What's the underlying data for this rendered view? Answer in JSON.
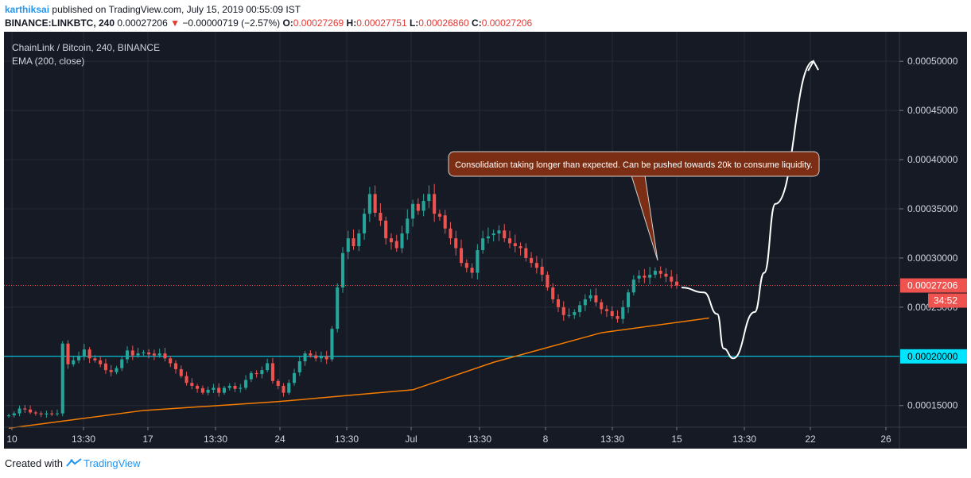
{
  "header": {
    "author": "karthiksai",
    "published_text": "published on TradingView.com, July 15, 2019 00:55:09 IST",
    "symbol": "BINANCE:LINKBTC, 240",
    "last": "0.00027206",
    "change": "−0.00000719 (−2.57%)",
    "o_label": "O:",
    "o_value": "0.00027269",
    "h_label": "H:",
    "h_value": "0.00027751",
    "l_label": "L:",
    "l_value": "0.00026860",
    "c_label": "C:",
    "c_value": "0.00027206"
  },
  "legend": {
    "pair": "ChainLink / Bitcoin, 240, BINANCE",
    "indicator": "EMA (200, close)"
  },
  "annotation": {
    "text": "Consolidation taking longer than expected. Can be pushed towards 20k to consume liquidity."
  },
  "footer": {
    "created_with": "Created with",
    "brand": "TradingView"
  },
  "colors": {
    "background": "#161a25",
    "up": "#26a69a",
    "down": "#ef5350",
    "ema": "#f57c00",
    "support": "#00e5ff",
    "price_line": "#ef5350",
    "callout": "#7b2e14",
    "projection": "#ffffff"
  },
  "chart_data": {
    "type": "candlestick",
    "title": "ChainLink / Bitcoin, 240, BINANCE",
    "y_axis": {
      "ticks": [
        "0.00015000",
        "0.00020000",
        "0.00025000",
        "0.00030000",
        "0.00035000",
        "0.00040000",
        "0.00045000",
        "0.00050000"
      ],
      "range": [
        0.000128,
        0.00053
      ]
    },
    "x_axis": {
      "ticks": [
        "10",
        "13:30",
        "17",
        "13:30",
        "24",
        "13:30",
        "Jul",
        "13:30",
        "8",
        "13:30",
        "15",
        "13:30",
        "22",
        "26"
      ]
    },
    "price_close_series_approx": [
      0.00014,
      0.000142,
      0.000147,
      0.000146,
      0.000143,
      0.000142,
      0.000141,
      0.000142,
      0.000141,
      0.000142,
      0.000213,
      0.000192,
      0.000196,
      0.0002,
      0.000207,
      0.000198,
      0.000196,
      0.000192,
      0.000186,
      0.000184,
      0.000188,
      0.000197,
      0.000206,
      0.000201,
      0.000203,
      0.000204,
      0.000202,
      0.000201,
      0.000203,
      0.000198,
      0.000193,
      0.000187,
      0.00018,
      0.000173,
      0.00017,
      0.000167,
      0.000163,
      0.000166,
      0.000168,
      0.000163,
      0.000168,
      0.00017,
      0.000167,
      0.000168,
      0.000176,
      0.000183,
      0.000182,
      0.000186,
      0.000193,
      0.000175,
      0.00017,
      0.000163,
      0.000173,
      0.000183,
      0.000195,
      0.000203,
      0.000201,
      0.000198,
      0.0002,
      0.000197,
      0.000228,
      0.00027,
      0.000305,
      0.00032,
      0.000312,
      0.000325,
      0.000345,
      0.000365,
      0.000346,
      0.000338,
      0.00032,
      0.000316,
      0.00031,
      0.000325,
      0.00034,
      0.000355,
      0.000348,
      0.000358,
      0.000365,
      0.000345,
      0.000342,
      0.00033,
      0.00032,
      0.00031,
      0.000295,
      0.00029,
      0.000285,
      0.000308,
      0.00032,
      0.000322,
      0.000325,
      0.000328,
      0.00032,
      0.000315,
      0.000312,
      0.00031,
      0.0003,
      0.000295,
      0.00029,
      0.000283,
      0.00027,
      0.000258,
      0.00025,
      0.000242,
      0.000242,
      0.000245,
      0.000252,
      0.000258,
      0.000262,
      0.000255,
      0.000248,
      0.000246,
      0.000241,
      0.000238,
      0.00025,
      0.000265,
      0.000278,
      0.000282,
      0.00028,
      0.000283,
      0.000287,
      0.000284,
      0.000281,
      0.000276,
      0.000272
    ],
    "ema_200": {
      "name": "EMA (200, close)",
      "points": [
        [
          0,
          0.000127
        ],
        [
          25,
          0.000145
        ],
        [
          50,
          0.000154
        ],
        [
          75,
          0.000166
        ],
        [
          90,
          0.000194
        ],
        [
          110,
          0.000224
        ],
        [
          130,
          0.000239
        ]
      ]
    },
    "horizontal_lines": [
      {
        "value": 0.0002,
        "label": "0.00020000",
        "color": "#00e5ff"
      },
      {
        "value": 0.00027206,
        "label": "0.00027206",
        "color": "#ef5350"
      }
    ],
    "countdown_label": "34:52",
    "projection_path": [
      [
        0.00027
      ],
      [
        0.000265
      ],
      [
        0.000243
      ],
      [
        0.000208
      ],
      [
        0.000198
      ],
      [
        0.000245
      ],
      [
        0.000285
      ],
      [
        0.000355
      ],
      [
        0.0005
      ]
    ]
  }
}
